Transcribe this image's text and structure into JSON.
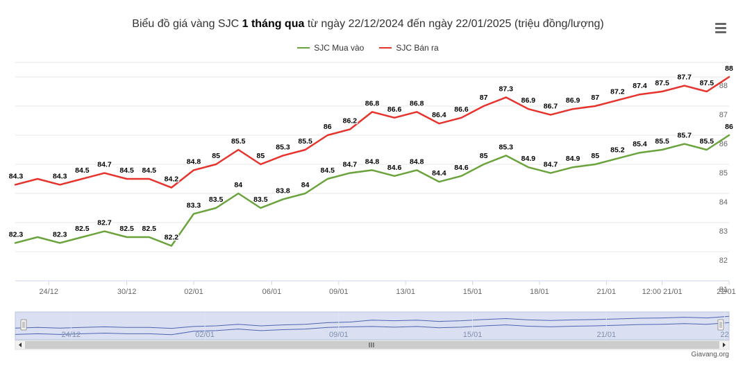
{
  "title": {
    "prefix": "Biểu đồ giá vàng SJC ",
    "bold": "1 tháng qua",
    "suffix": " từ ngày 22/12/2024 đến ngày 22/01/2025 (triệu đồng/lượng)"
  },
  "menu_icon": "hamburger-menu-icon",
  "credit": "Giavang.org",
  "colors": {
    "buy": "#6aa33b",
    "sell": "#e8322c",
    "navigator_fill": "#cdd6ee",
    "navigator_line": "#4d63b0"
  },
  "chart_data": {
    "type": "line",
    "title": "Biểu đồ giá vàng SJC 1 tháng qua từ ngày 22/12/2024 đến ngày 22/01/2025 (triệu đồng/lượng)",
    "xlabel": "",
    "ylabel": "",
    "ylim": [
      81,
      88.5
    ],
    "yticks": [
      81,
      82,
      83,
      84,
      85,
      86,
      87,
      88
    ],
    "legend_position": "top-center",
    "xtick_labels": [
      "24/12",
      "30/12",
      "02/01",
      "06/01",
      "09/01",
      "13/01",
      "15/01",
      "18/01",
      "21/01",
      "12:00 21/01",
      "22/01"
    ],
    "xtick_index": [
      1.5,
      5,
      8,
      11.5,
      14.5,
      17.5,
      20.5,
      23.5,
      26.5,
      29,
      32
    ],
    "series": [
      {
        "name": "SJC Mua vào",
        "values": [
          82.3,
          82.5,
          82.3,
          82.5,
          82.7,
          82.5,
          82.5,
          82.2,
          83.3,
          83.5,
          84,
          83.5,
          83.8,
          84,
          84.5,
          84.7,
          84.8,
          84.6,
          84.8,
          84.4,
          84.6,
          85,
          85.3,
          84.9,
          84.7,
          84.9,
          85,
          85.2,
          85.4,
          85.5,
          85.7,
          85.5,
          86
        ],
        "labels": [
          "82.3",
          "",
          "82.3",
          "82.5",
          "82.7",
          "82.5",
          "82.5",
          "82.2",
          "83.3",
          "83.5",
          "84",
          "83.5",
          "83.8",
          "84",
          "84.5",
          "84.7",
          "84.8",
          "84.6",
          "84.8",
          "84.4",
          "84.6",
          "85",
          "85.3",
          "84.9",
          "84.7",
          "84.9",
          "85",
          "85.2",
          "85.4",
          "85.5",
          "85.7",
          "85.5",
          "86"
        ]
      },
      {
        "name": "SJC Bán ra",
        "values": [
          84.3,
          84.5,
          84.3,
          84.5,
          84.7,
          84.5,
          84.5,
          84.2,
          84.8,
          85,
          85.5,
          85,
          85.3,
          85.5,
          86,
          86.2,
          86.8,
          86.6,
          86.8,
          86.4,
          86.6,
          87,
          87.3,
          86.9,
          86.7,
          86.9,
          87,
          87.2,
          87.4,
          87.5,
          87.7,
          87.5,
          88
        ],
        "labels": [
          "84.3",
          "",
          "84.3",
          "84.5",
          "84.7",
          "84.5",
          "84.5",
          "84.2",
          "84.8",
          "85",
          "85.5",
          "85",
          "85.3",
          "85.5",
          "86",
          "86.2",
          "86.8",
          "86.6",
          "86.8",
          "86.4",
          "86.6",
          "87",
          "87.3",
          "86.9",
          "86.7",
          "86.9",
          "87",
          "87.2",
          "87.4",
          "87.5",
          "87.7",
          "87.5",
          "88"
        ]
      }
    ],
    "navigator": {
      "labels": [
        "24/12",
        "02/01",
        "09/01",
        "15/01",
        "21/01",
        "22"
      ],
      "label_index": [
        2.5,
        8.5,
        14.5,
        20.5,
        26.5,
        31.8
      ]
    }
  }
}
